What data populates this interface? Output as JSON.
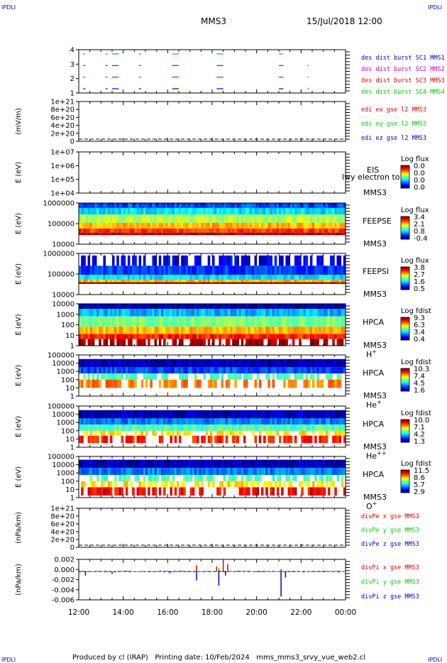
{
  "header": {
    "corner_label": "IPDLI",
    "title": "MMS3",
    "datetime": "15/Jul/2018 12:00"
  },
  "footer": {
    "text": "Produced by cl (IRAP)   Printing date: 10/Feb/2024   mms_mms3_srvy_vue_web2.cl"
  },
  "colors": {
    "red": "#dd0000",
    "green": "#00cc00",
    "blue": "#0000cc",
    "magenta": "#cc00cc"
  },
  "x_axis": {
    "tick_labels": [
      "12:00",
      "14:00",
      "16:00",
      "18:00",
      "20:00",
      "22:00",
      "00:00"
    ]
  },
  "chart_data": [
    {
      "type": "line",
      "id": "burst",
      "title": "",
      "ylabel": "",
      "yticks": [
        "4",
        "3",
        "2",
        "1"
      ],
      "legend": [
        {
          "text": "des dist burst SC1 MMS1",
          "color": "#0000cc"
        },
        {
          "text": "des dist burst SC2 MMS2",
          "color": "#cc00cc"
        },
        {
          "text": "des dist burst SC3 MMS3",
          "color": "#dd0000"
        },
        {
          "text": "des dist burst SC4 MMS4",
          "color": "#00cc00"
        }
      ],
      "series": [
        {
          "name": "des dist burst SC4 MMS4",
          "level": 4,
          "intervals": [
            [
              12.2,
              12.3
            ],
            [
              13.2,
              13.3
            ],
            [
              13.5,
              13.8
            ],
            [
              14.7,
              14.8
            ],
            [
              16.2,
              16.5
            ],
            [
              18.2,
              18.5
            ],
            [
              21.0,
              21.2
            ]
          ]
        },
        {
          "name": "des dist burst SC3 MMS3",
          "level": 3,
          "intervals": [
            [
              12.2,
              12.3
            ],
            [
              13.2,
              13.3
            ],
            [
              13.5,
              13.8
            ],
            [
              14.7,
              14.8
            ],
            [
              16.2,
              16.5
            ],
            [
              18.2,
              18.5
            ],
            [
              21.0,
              21.2
            ],
            [
              22.3,
              22.35
            ]
          ]
        },
        {
          "name": "des dist burst SC2 MMS2",
          "level": 2,
          "intervals": [
            [
              12.2,
              12.3
            ],
            [
              13.2,
              13.3
            ],
            [
              13.5,
              13.8
            ],
            [
              14.7,
              14.8
            ],
            [
              16.2,
              16.5
            ],
            [
              18.2,
              18.5
            ],
            [
              21.0,
              21.2
            ],
            [
              22.3,
              22.35
            ]
          ]
        },
        {
          "name": "des dist burst SC1 MMS1",
          "level": 1,
          "intervals": [
            [
              12.2,
              12.3
            ],
            [
              13.2,
              13.3
            ],
            [
              13.5,
              13.8
            ],
            [
              14.7,
              14.8
            ],
            [
              16.2,
              16.5
            ],
            [
              18.2,
              18.5
            ],
            [
              21.0,
              21.2
            ],
            [
              22.3,
              22.35
            ]
          ]
        }
      ]
    },
    {
      "type": "line",
      "id": "edi",
      "ylabel": "(mV/m)",
      "yticks": [
        "1e+21",
        "8e+20",
        "6e+20",
        "4e+20",
        "2e+20",
        "0"
      ],
      "legend": [
        {
          "text": "edi ex gse l2 MMS3",
          "color": "#dd0000"
        },
        {
          "text": "edi ey gse l2 MMS3",
          "color": "#00cc00"
        },
        {
          "text": "edi ez gse l2 MMS3",
          "color": "#0000cc"
        }
      ],
      "series": [],
      "zero_line": true
    },
    {
      "type": "heatmap",
      "id": "eis",
      "ylabel": "E (eV)",
      "yticks": [
        "1e+07",
        "1e+06",
        "1e+05",
        "1e+04"
      ],
      "instrument": "EIS",
      "spacecraft": "MMS3",
      "overlay_text": "lwy electron to",
      "colorbar": {
        "label": "Log flux",
        "ticks": [
          "0.0",
          "0.0",
          "0.0",
          "0.0"
        ]
      },
      "empty": true
    },
    {
      "type": "heatmap",
      "id": "feepse",
      "ylabel": "E (eV)",
      "yticks": [
        "1000000",
        "100000",
        "10000"
      ],
      "instrument": "FEEPSE",
      "spacecraft": "MMS3",
      "colorbar": {
        "label": "Log flux",
        "ticks": [
          "3.4",
          "2.1",
          "0.8",
          "-0.4"
        ]
      },
      "bands": [
        {
          "from": 0.0,
          "to": 0.12,
          "level": 0.2
        },
        {
          "from": 0.12,
          "to": 0.28,
          "level": 0.35
        },
        {
          "from": 0.28,
          "to": 0.48,
          "level": 0.55
        },
        {
          "from": 0.48,
          "to": 0.62,
          "level": 0.7
        },
        {
          "from": 0.62,
          "to": 0.72,
          "level": 0.82
        },
        {
          "from": 0.72,
          "to": 0.78,
          "level": 0.95
        }
      ]
    },
    {
      "type": "heatmap",
      "id": "feepsi",
      "ylabel": "E (eV)",
      "yticks": [
        "1000000",
        "100000",
        "10000"
      ],
      "instrument": "FEEPSI",
      "spacecraft": "MMS3",
      "colorbar": {
        "label": "Log flux",
        "ticks": [
          "3.8",
          "2.7",
          "1.6",
          "0.5"
        ]
      },
      "bands": [
        {
          "from": 0.05,
          "to": 0.3,
          "level": 0.1,
          "sparse": true
        },
        {
          "from": 0.3,
          "to": 0.52,
          "level": 0.18
        },
        {
          "from": 0.52,
          "to": 0.64,
          "level": 0.35
        },
        {
          "from": 0.64,
          "to": 0.7,
          "level": 0.7
        },
        {
          "from": 0.7,
          "to": 0.74,
          "level": 0.97
        }
      ]
    },
    {
      "type": "heatmap",
      "id": "hpca_h",
      "ylabel": "E (eV)",
      "yticks": [
        "10000",
        "1000",
        "100",
        "10",
        "1"
      ],
      "instrument": "HPCA",
      "spacecraft": "MMS3",
      "species": "H+",
      "colorbar": {
        "label": "Log fdist",
        "ticks": [
          "9.3",
          "6.3",
          "3.4",
          "0.4"
        ]
      },
      "bands": [
        {
          "from": 0.0,
          "to": 0.12,
          "level": 0.05
        },
        {
          "from": 0.12,
          "to": 0.3,
          "level": 0.3
        },
        {
          "from": 0.3,
          "to": 0.55,
          "level": 0.5
        },
        {
          "from": 0.55,
          "to": 0.72,
          "level": 0.7
        },
        {
          "from": 0.72,
          "to": 0.84,
          "level": 0.85
        },
        {
          "from": 0.84,
          "to": 1.0,
          "level": 0.97,
          "sparse": true
        }
      ]
    },
    {
      "type": "heatmap",
      "id": "hpca_he",
      "ylabel": "E (eV)",
      "yticks": [
        "100000",
        "10000",
        "1000",
        "100",
        "10",
        "1"
      ],
      "instrument": "HPCA",
      "spacecraft": "MMS3",
      "species": "He+",
      "colorbar": {
        "label": "Log fdist",
        "ticks": [
          "10.3",
          "7.4",
          "4.5",
          "1.6"
        ]
      },
      "bands": [
        {
          "from": 0.1,
          "to": 0.3,
          "level": 0.05
        },
        {
          "from": 0.3,
          "to": 0.45,
          "level": 0.2
        },
        {
          "from": 0.45,
          "to": 0.6,
          "level": 0.45,
          "sparse": true
        },
        {
          "from": 0.6,
          "to": 0.8,
          "level": 0.75,
          "sparse": true
        }
      ]
    },
    {
      "type": "heatmap",
      "id": "hpca_hepp",
      "ylabel": "E (eV)",
      "yticks": [
        "100000",
        "10000",
        "1000",
        "100",
        "10",
        "1"
      ],
      "instrument": "HPCA",
      "spacecraft": "MMS3",
      "species": "He++",
      "colorbar": {
        "label": "Log fdist",
        "ticks": [
          "10.0",
          "7.1",
          "4.2",
          "1.3"
        ]
      },
      "bands": [
        {
          "from": 0.1,
          "to": 0.3,
          "level": 0.05
        },
        {
          "from": 0.3,
          "to": 0.45,
          "level": 0.25
        },
        {
          "from": 0.45,
          "to": 0.6,
          "level": 0.45
        },
        {
          "from": 0.6,
          "to": 0.72,
          "level": 0.65,
          "sparse": true
        },
        {
          "from": 0.72,
          "to": 0.9,
          "level": 0.85,
          "sparse": true
        }
      ]
    },
    {
      "type": "heatmap",
      "id": "hpca_o",
      "ylabel": "E (eV)",
      "yticks": [
        "100000",
        "10000",
        "1000",
        "100",
        "10",
        "1"
      ],
      "instrument": "HPCA",
      "spacecraft": "MMS3",
      "species": "O+",
      "colorbar": {
        "label": "Log fdist",
        "ticks": [
          "11.5",
          "8.6",
          "5.7",
          "2.9"
        ]
      },
      "bands": [
        {
          "from": 0.08,
          "to": 0.28,
          "level": 0.05
        },
        {
          "from": 0.28,
          "to": 0.45,
          "level": 0.25
        },
        {
          "from": 0.45,
          "to": 0.6,
          "level": 0.45,
          "sparse": true
        },
        {
          "from": 0.6,
          "to": 0.75,
          "level": 0.65,
          "sparse": true
        },
        {
          "from": 0.75,
          "to": 0.95,
          "level": 0.88,
          "sparse": true
        }
      ]
    },
    {
      "type": "line",
      "id": "divpe",
      "ylabel": "(nPa/km)",
      "yticks": [
        "1e+21",
        "8e+20",
        "6e+20",
        "4e+20",
        "2e+20",
        "0"
      ],
      "legend": [
        {
          "text": "divPe x gse MMS3",
          "color": "#dd0000"
        },
        {
          "text": "divPe y gse MMS3",
          "color": "#00cc00"
        },
        {
          "text": "divPe z gse MMS3",
          "color": "#0000cc"
        }
      ],
      "series": [],
      "zero_line": true
    },
    {
      "type": "line",
      "id": "divpi",
      "ylabel": "(nPa/km)",
      "yticks": [
        "0.002",
        "0.000",
        "-0.002",
        "-0.004",
        "-0.006"
      ],
      "ylim": [
        -0.007,
        0.003
      ],
      "legend": [
        {
          "text": "divPi x gse MMS3",
          "color": "#dd0000"
        },
        {
          "text": "divPi y gse MMS3",
          "color": "#00cc00"
        },
        {
          "text": "divPi z gse MMS3",
          "color": "#0000cc"
        }
      ],
      "series": [
        {
          "name": "divPi z gse MMS3",
          "spikes": [
            [
              12.3,
              -0.001
            ],
            [
              13.5,
              -0.0006
            ],
            [
              16.1,
              -0.0004
            ],
            [
              17.3,
              -0.0022
            ],
            [
              18.3,
              -0.0035
            ],
            [
              18.6,
              -0.001
            ],
            [
              21.1,
              -0.0062
            ],
            [
              21.3,
              -0.0015
            ]
          ]
        },
        {
          "name": "divPi y gse MMS3",
          "spikes": [
            [
              17.3,
              0.0004
            ],
            [
              18.3,
              0.0008
            ],
            [
              21.1,
              0.0003
            ]
          ]
        },
        {
          "name": "divPi x gse MMS3",
          "spikes": [
            [
              17.3,
              0.0015
            ],
            [
              18.2,
              0.0012
            ],
            [
              18.5,
              0.0025
            ],
            [
              18.7,
              0.0018
            ],
            [
              21.1,
              0.0006
            ]
          ]
        }
      ]
    }
  ]
}
